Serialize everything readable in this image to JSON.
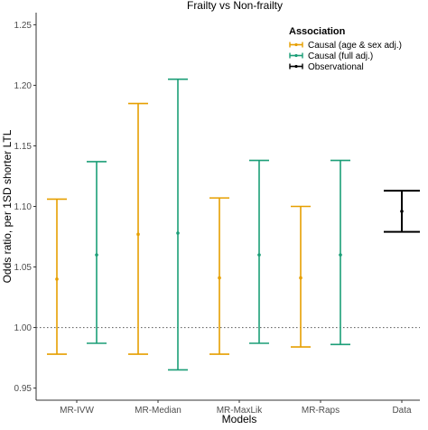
{
  "chart_data": {
    "type": "errorbar",
    "title": "Frailty vs Non-frailty",
    "xlabel": "Models",
    "ylabel": "Odds ratio, per 1SD shorter LTL",
    "ylim": [
      0.94,
      1.26
    ],
    "yticks": [
      0.95,
      1.0,
      1.05,
      1.1,
      1.15,
      1.2,
      1.25
    ],
    "ytick_labels": [
      "0.95",
      "1.00",
      "1.05",
      "1.10",
      "1.15",
      "1.20",
      "1.25"
    ],
    "reference_line": 1.0,
    "grid": false,
    "categories": [
      "MR-IVW",
      "MR-Median",
      "MR-MaxLik",
      "MR-Raps",
      "Data"
    ],
    "legend": {
      "title": "Association",
      "placement": "top-right"
    },
    "series": [
      {
        "name": "Causal (age & sex adj.)",
        "color": "#E69F00",
        "points": [
          {
            "category": "MR-IVW",
            "estimate": 1.04,
            "lower": 0.978,
            "upper": 1.106
          },
          {
            "category": "MR-Median",
            "estimate": 1.077,
            "lower": 0.978,
            "upper": 1.185
          },
          {
            "category": "MR-MaxLik",
            "estimate": 1.041,
            "lower": 0.978,
            "upper": 1.107
          },
          {
            "category": "MR-Raps",
            "estimate": 1.041,
            "lower": 0.984,
            "upper": 1.1
          }
        ]
      },
      {
        "name": "Causal (full adj.)",
        "color": "#1B9E77",
        "points": [
          {
            "category": "MR-IVW",
            "estimate": 1.06,
            "lower": 0.987,
            "upper": 1.137
          },
          {
            "category": "MR-Median",
            "estimate": 1.078,
            "lower": 0.965,
            "upper": 1.205
          },
          {
            "category": "MR-MaxLik",
            "estimate": 1.06,
            "lower": 0.987,
            "upper": 1.138
          },
          {
            "category": "MR-Raps",
            "estimate": 1.06,
            "lower": 0.986,
            "upper": 1.138
          }
        ]
      },
      {
        "name": "Observational",
        "color": "#000000",
        "points": [
          {
            "category": "Data",
            "estimate": 1.096,
            "lower": 1.079,
            "upper": 1.113
          }
        ]
      }
    ]
  }
}
